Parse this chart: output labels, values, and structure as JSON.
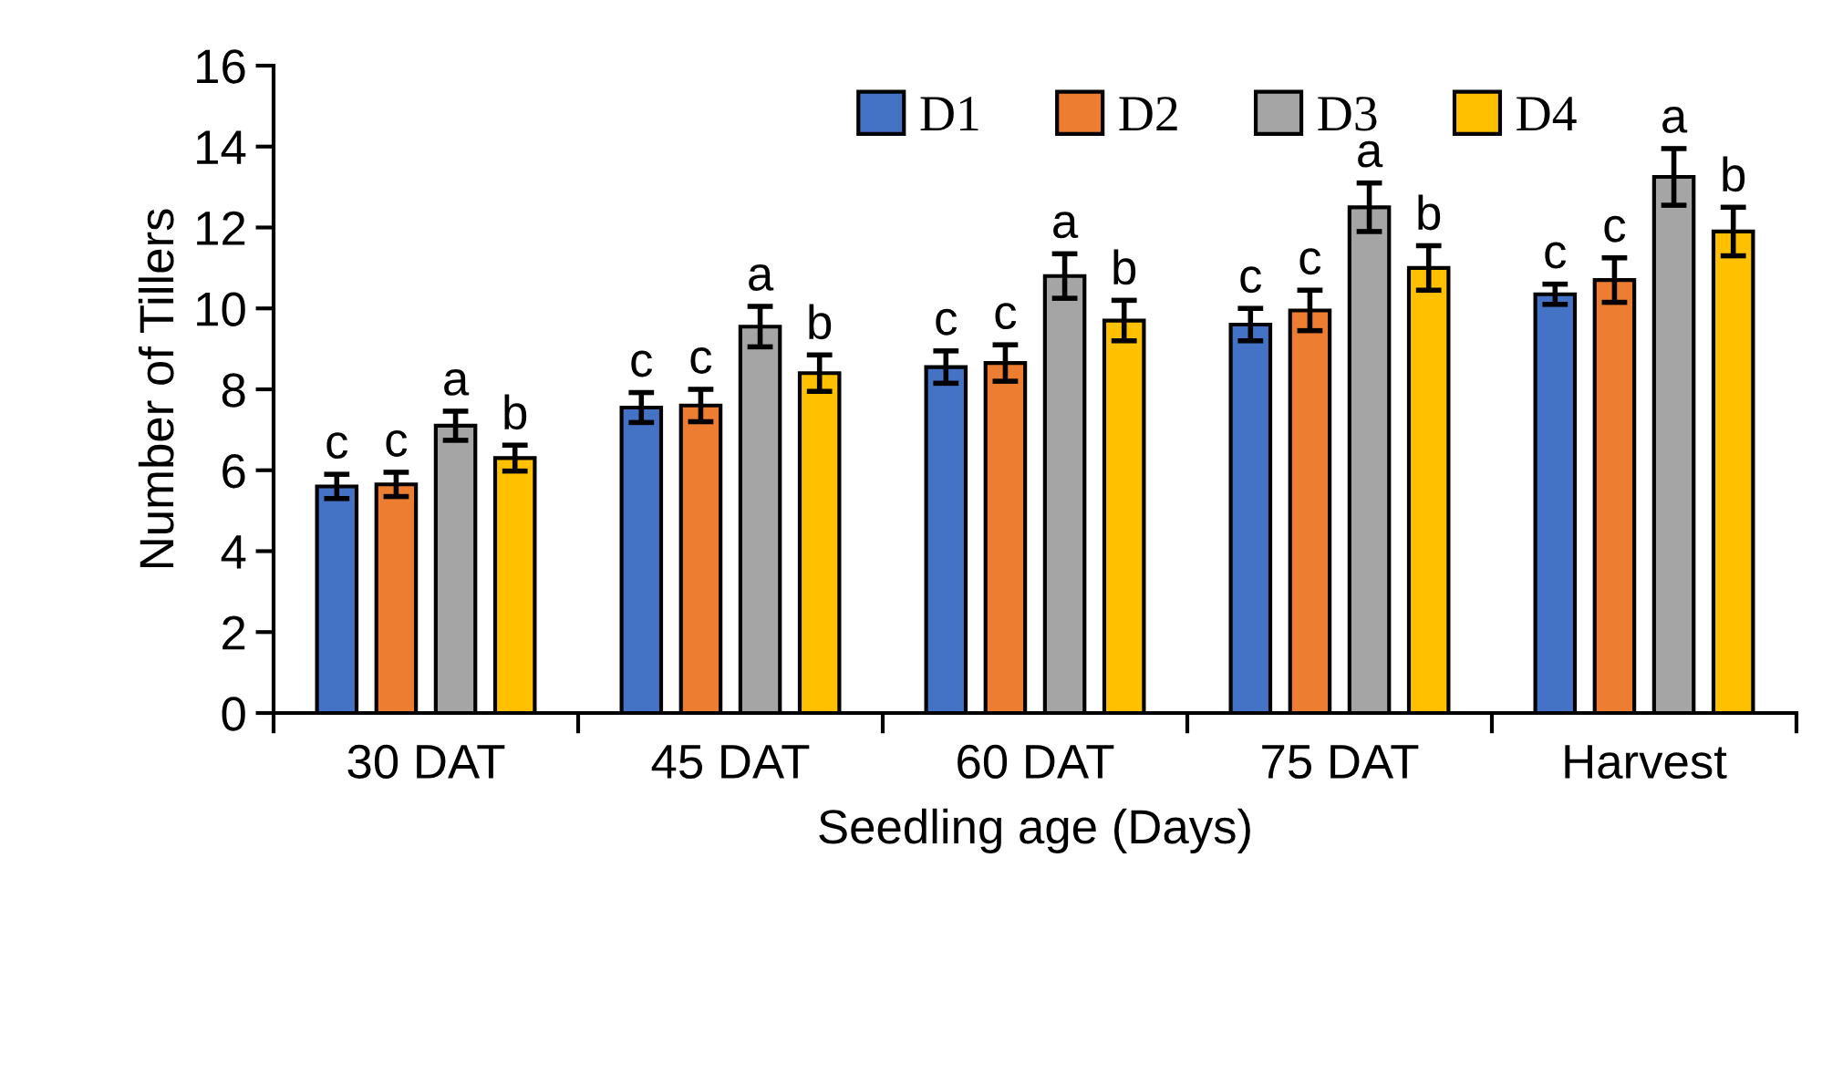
{
  "chart_data": {
    "type": "bar",
    "xlabel": "Seedling age (Days)",
    "ylabel": "Number of Tillers",
    "categories": [
      "30 DAT",
      "45 DAT",
      "60 DAT",
      "75 DAT",
      "Harvest"
    ],
    "ylim": [
      0,
      16
    ],
    "yticks": [
      0,
      2,
      4,
      6,
      8,
      10,
      12,
      14,
      16
    ],
    "grid": false,
    "legend": "top",
    "series": [
      {
        "name": "D1",
        "color": "#4472c4",
        "values": [
          5.6,
          7.55,
          8.55,
          9.6,
          10.35
        ],
        "errors": [
          0.3,
          0.37,
          0.4,
          0.4,
          0.25
        ],
        "value_labels": [
          "c",
          "c",
          "c",
          "c",
          "c"
        ]
      },
      {
        "name": "D2",
        "color": "#ed7d31",
        "values": [
          5.65,
          7.6,
          8.65,
          9.95,
          10.7
        ],
        "errors": [
          0.3,
          0.4,
          0.45,
          0.5,
          0.55
        ],
        "value_labels": [
          "c",
          "c",
          "c",
          "c",
          "c"
        ]
      },
      {
        "name": "D3",
        "color": "#a5a5a5",
        "values": [
          7.1,
          9.55,
          10.8,
          12.5,
          13.25
        ],
        "errors": [
          0.36,
          0.5,
          0.55,
          0.6,
          0.7
        ],
        "value_labels": [
          "a",
          "a",
          "a",
          "a",
          "a"
        ]
      },
      {
        "name": "D4",
        "color": "#ffc000",
        "values": [
          6.3,
          8.4,
          9.7,
          11.0,
          11.9
        ],
        "errors": [
          0.32,
          0.45,
          0.5,
          0.55,
          0.6
        ],
        "value_labels": [
          "b",
          "b",
          "b",
          "b",
          "b"
        ]
      }
    ]
  }
}
